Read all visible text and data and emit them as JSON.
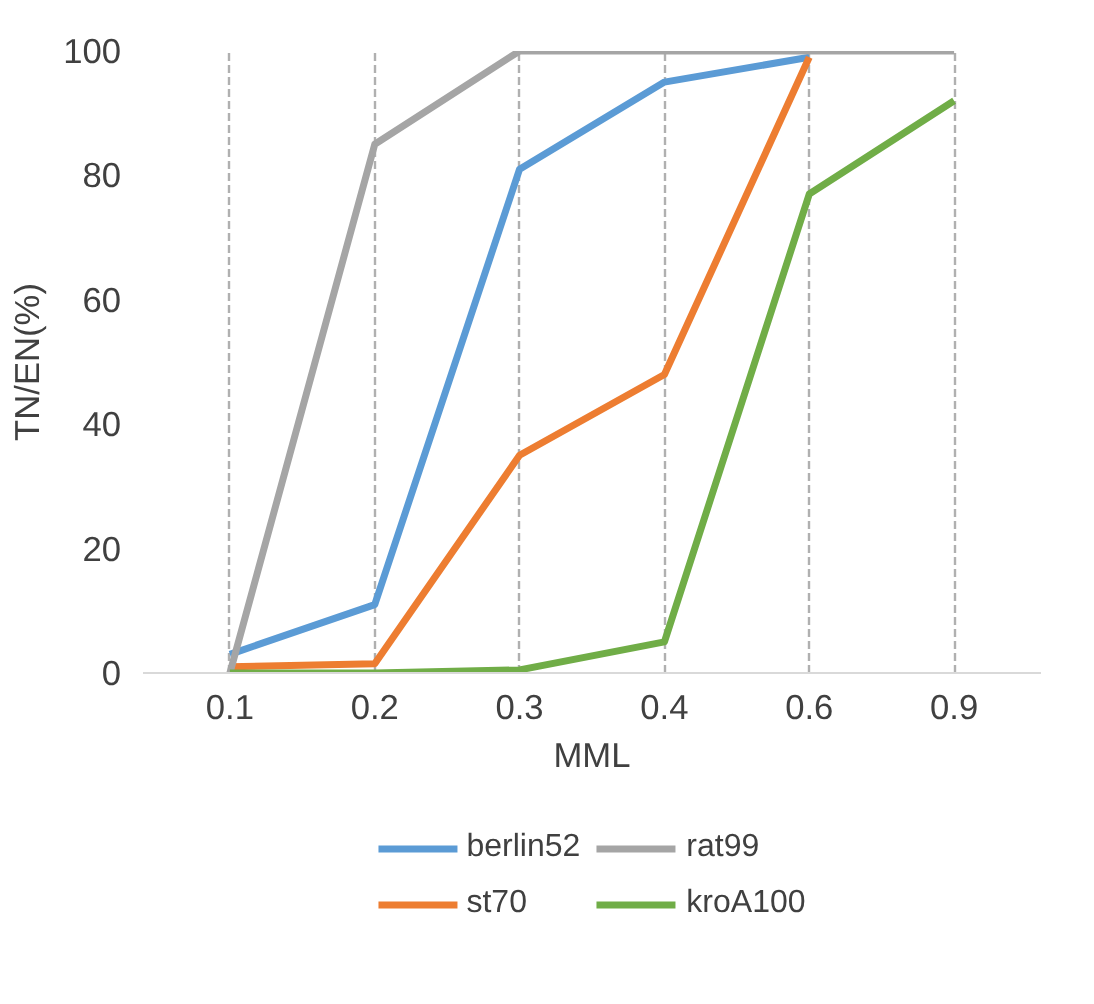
{
  "chart_data": {
    "type": "line",
    "xlabel": "MML",
    "ylabel": "TN/EN(%)",
    "categories": [
      "0.1",
      "0.2",
      "0.3",
      "0.4",
      "0.6",
      "0.9"
    ],
    "ylim": [
      0,
      100
    ],
    "yticks": [
      0,
      20,
      40,
      60,
      80,
      100
    ],
    "grid": "x",
    "legend": "bottom",
    "series": [
      {
        "name": "berlin52",
        "color": "#5b9bd5",
        "values": [
          3,
          11,
          81,
          95,
          99,
          null
        ]
      },
      {
        "name": "st70",
        "color": "#ed7d31",
        "values": [
          1,
          1.5,
          35,
          48,
          99,
          null
        ]
      },
      {
        "name": "rat99",
        "color": "#a5a5a5",
        "values": [
          0,
          85,
          100,
          100,
          100,
          100
        ]
      },
      {
        "name": "kroA100",
        "color": "#70ad47",
        "values": [
          0,
          0,
          0.5,
          5,
          77,
          92
        ]
      }
    ]
  }
}
